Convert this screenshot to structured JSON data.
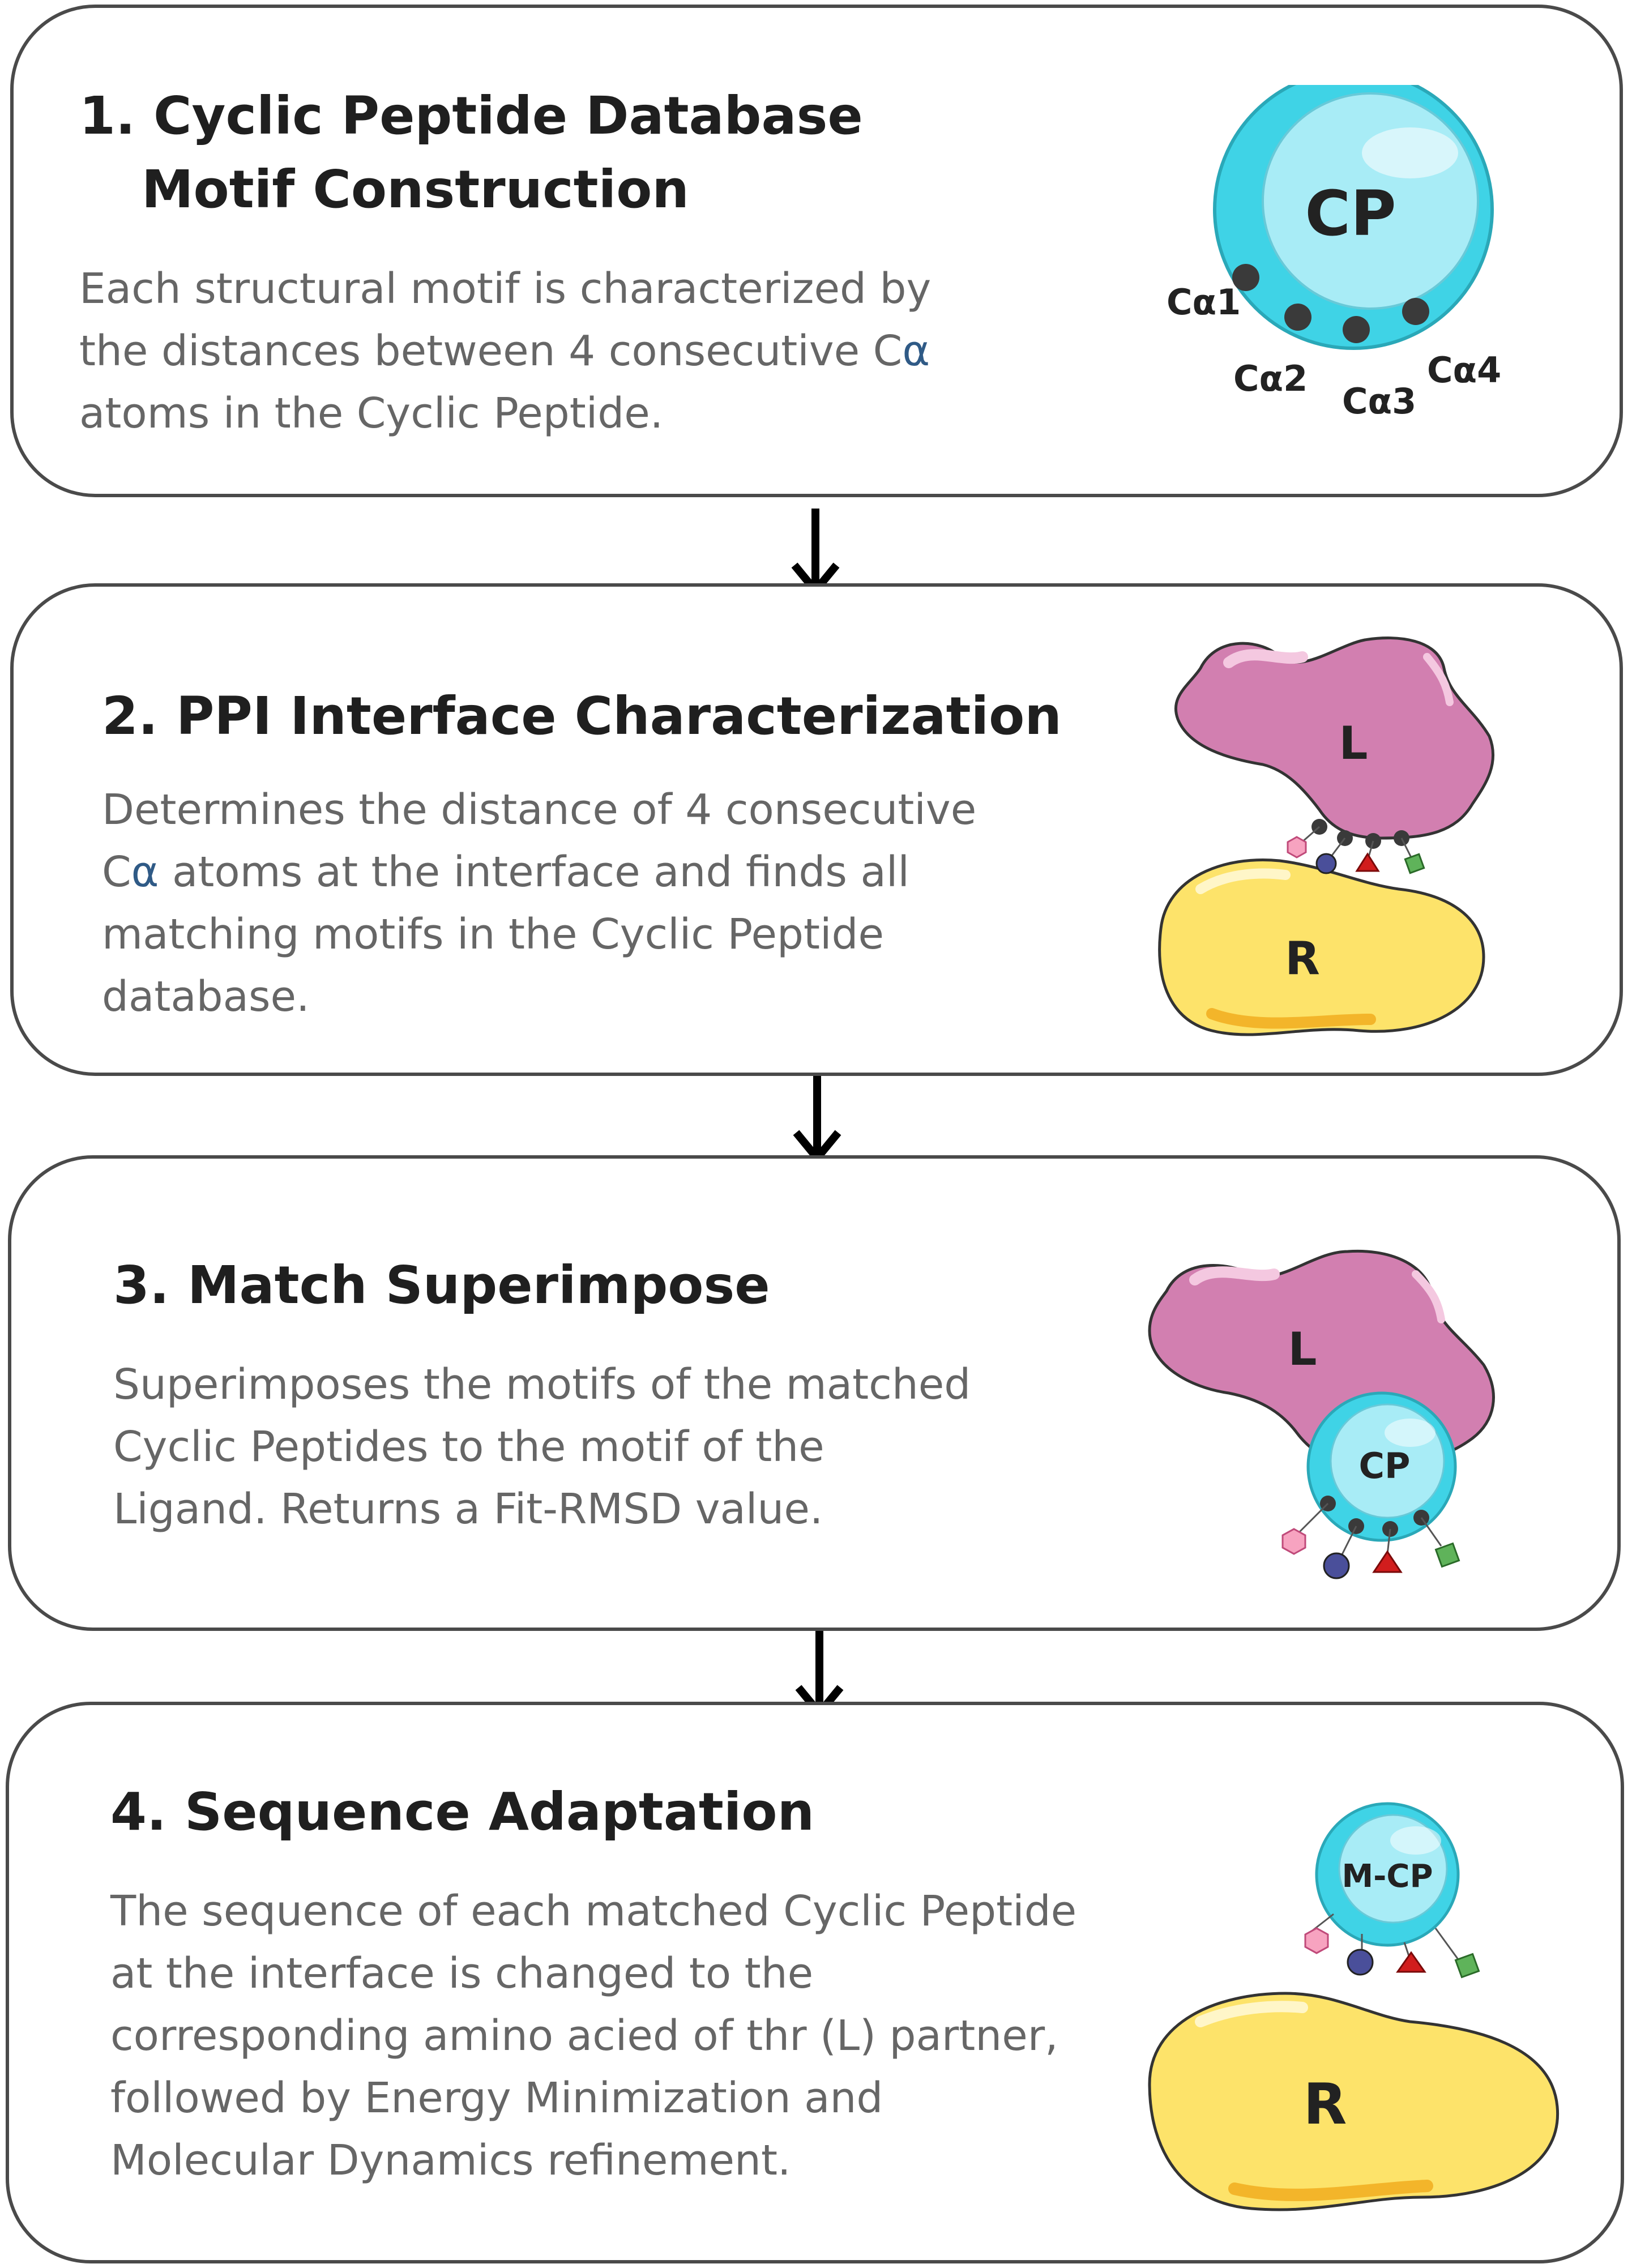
{
  "steps": [
    {
      "title_line1": "1.  Cyclic Peptide Database",
      "title_line2": "Motif Construction",
      "desc_before": "Each structural motif is characterized by the distances between 4 consecutive C",
      "desc_alpha": "α",
      "desc_after": " atoms in the Cyclic Peptide.",
      "labels": {
        "cp": "CP",
        "ca1": "Cα1",
        "ca2": "Cα2",
        "ca3": "Cα3",
        "ca4": "Cα4"
      }
    },
    {
      "title_line1": "2. PPI Interface Characterization",
      "desc_before": "Determines the distance of 4 consecutive C",
      "desc_alpha": "α",
      "desc_after": " atoms at the interface and finds all matching motifs in the Cyclic Peptide database.",
      "labels": {
        "l": "L",
        "r": "R"
      }
    },
    {
      "title_line1": "3. Match Superimpose",
      "desc": "Superimposes the motifs of the matched Cyclic Peptides to the motif of the Ligand. Returns a Fit-RMSD value.",
      "labels": {
        "l": "L",
        "cp": "CP"
      }
    },
    {
      "title_line1": "4. Sequence Adaptation",
      "desc": "The sequence of each matched Cyclic Peptide at the interface is changed to the corresponding amino acied of thr (L) partner, followed by Energy Minimization and Molecular Dynamics refinement.",
      "labels": {
        "mcp": "M-CP",
        "r": "R"
      }
    }
  ],
  "colors": {
    "cyan": "#3fd3e6",
    "cyan_light": "#a8ecf6",
    "pink": "#d27fb0",
    "yellow": "#fde36a",
    "dot": "#3a3a3a",
    "hexagon": "#f7a3c0",
    "sphere": "#4a4f9a",
    "triangle": "#d11d1d",
    "square": "#5fb35a"
  },
  "icons": [
    "down-arrow-icon",
    "hexagon-icon",
    "sphere-icon",
    "triangle-icon",
    "square-icon"
  ]
}
